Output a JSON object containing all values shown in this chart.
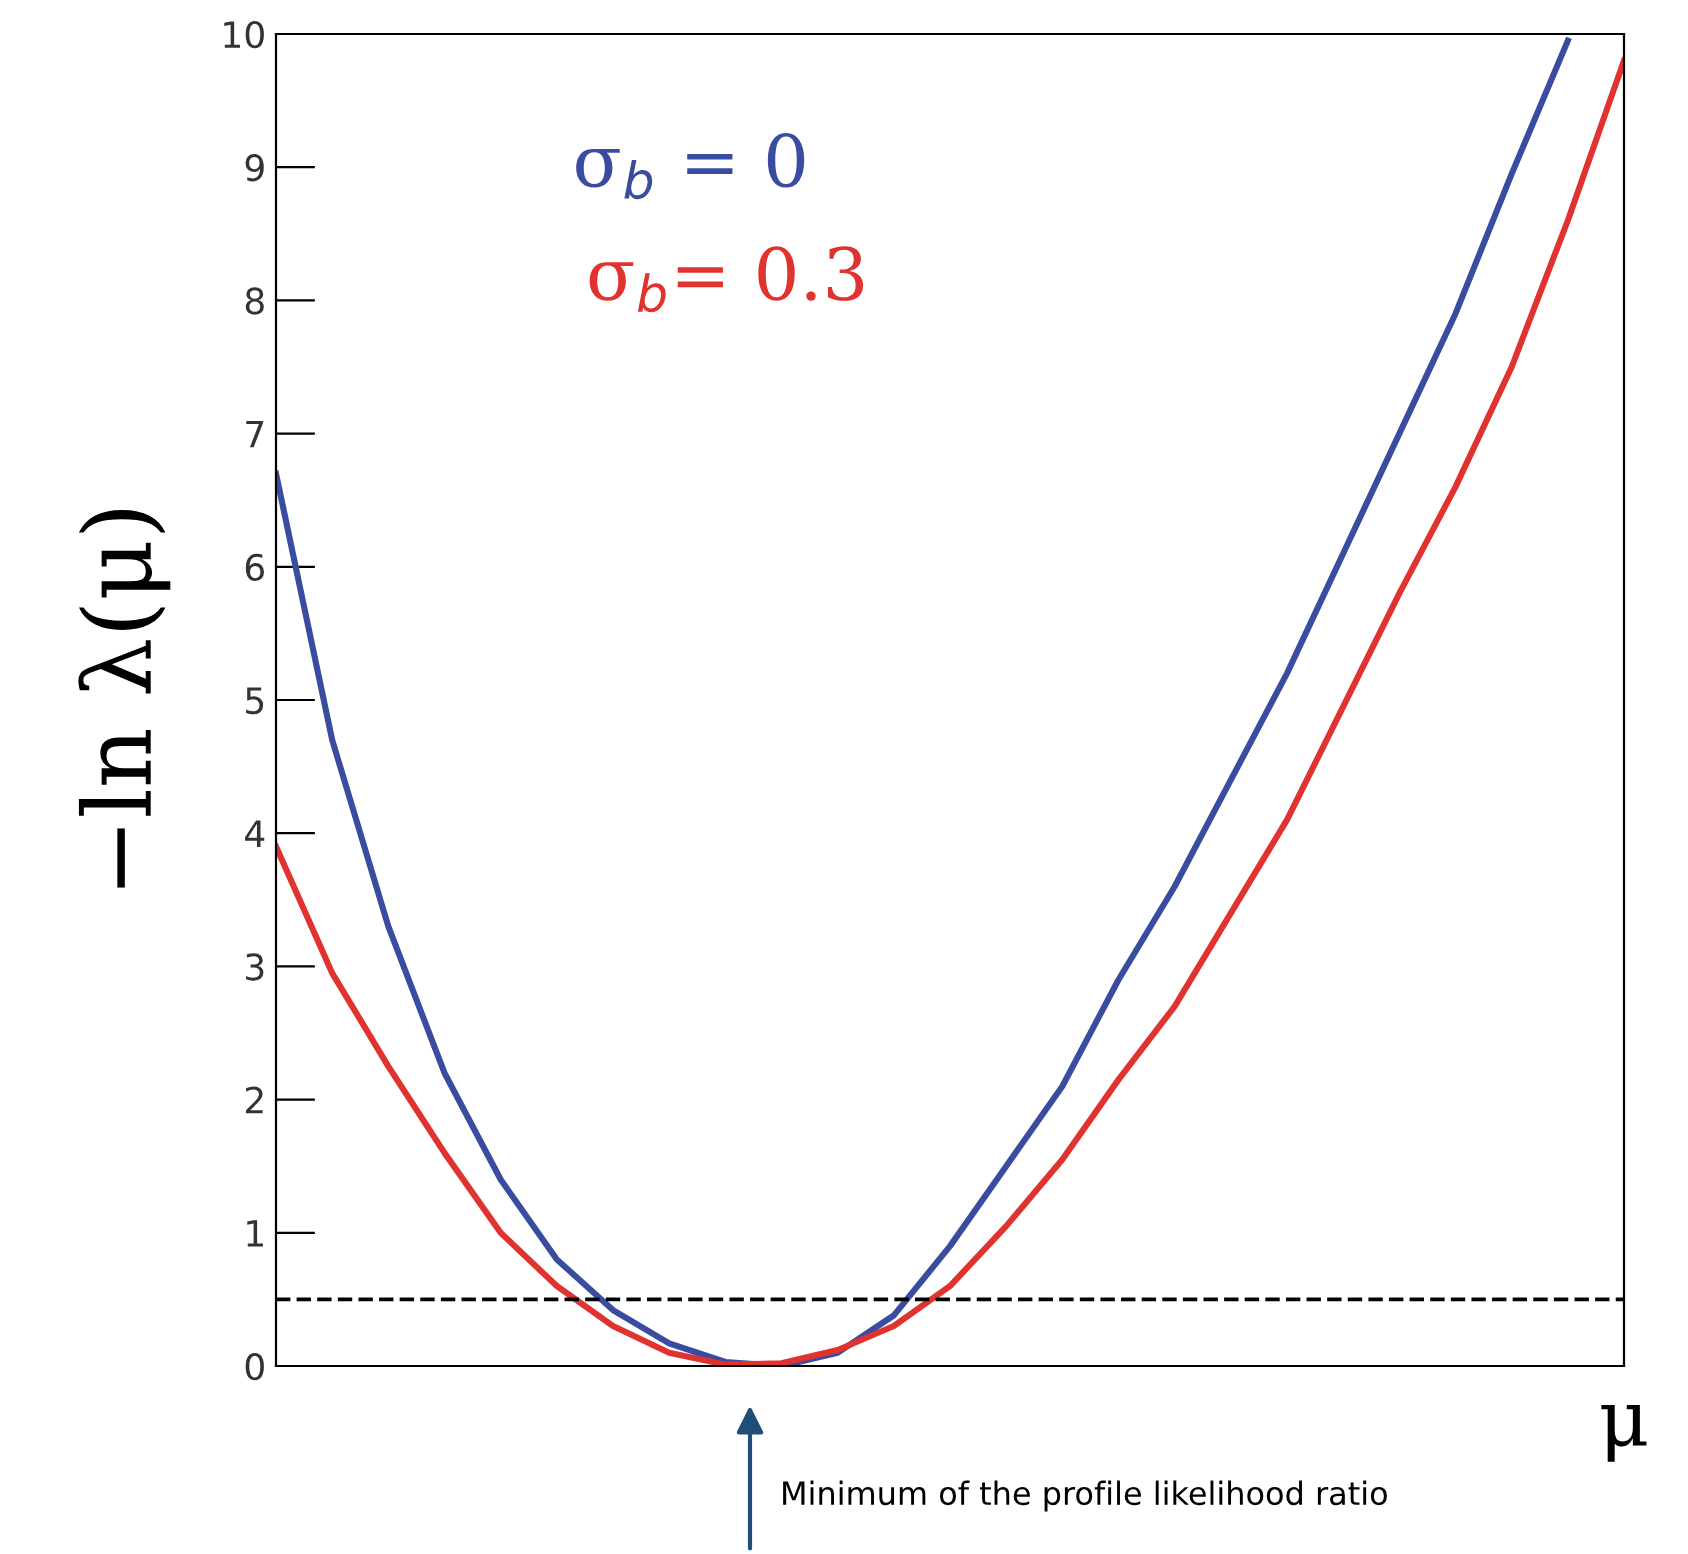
{
  "chart_data": {
    "type": "line",
    "xlabel": "μ",
    "ylabel": "−ln λ(μ)",
    "categories": [
      null,
      null,
      null,
      null,
      null,
      null,
      null,
      null,
      null,
      null,
      null,
      null,
      null,
      null,
      null,
      null,
      null,
      null,
      null,
      null,
      null,
      null,
      null,
      null,
      null
    ],
    "series": [
      {
        "name": "σ$_{b}$ = 0",
        "color": "#3a4ca0",
        "values": [
          6.7,
          4.7,
          3.3,
          2.2,
          1.4,
          0.8,
          0.42,
          0.17,
          0.03,
          0.0,
          0.1,
          0.38,
          0.9,
          1.5,
          2.1,
          2.9,
          3.6,
          4.4,
          5.2,
          6.1,
          7.0,
          7.9,
          8.95,
          9.95,
          null
        ]
      },
      {
        "name": "σ$_{b}$= 0.3",
        "color": "#e0322e",
        "values": [
          3.9,
          2.95,
          2.25,
          1.6,
          1.0,
          0.6,
          0.3,
          0.1,
          0.01,
          0.02,
          0.12,
          0.3,
          0.6,
          1.05,
          1.55,
          2.15,
          2.7,
          3.4,
          4.1,
          4.95,
          5.8,
          6.6,
          7.5,
          8.6,
          9.8
        ]
      }
    ],
    "ylim": [
      0,
      10
    ],
    "yticks": [
      0,
      1,
      2,
      3,
      4,
      5,
      6,
      7,
      8,
      9,
      10
    ],
    "tick_labels": "y",
    "grid": false,
    "legend": "top left",
    "line_style": "solid",
    "marker": "none",
    "ref_lines": [
      {
        "axis": "y",
        "value": 0.5,
        "color": "#000000",
        "line_style": "dashed"
      }
    ],
    "annotations": [
      "Minimum of the profile likelihood ratio"
    ]
  }
}
